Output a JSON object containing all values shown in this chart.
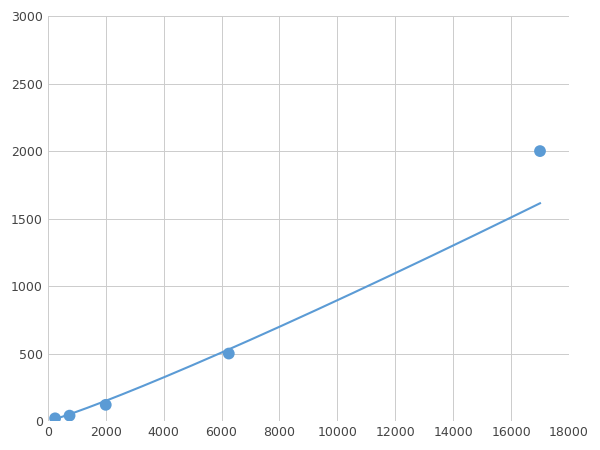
{
  "x": [
    250,
    750,
    2000,
    6250,
    17000
  ],
  "y": [
    20,
    40,
    120,
    500,
    2000
  ],
  "line_color": "#5b9bd5",
  "marker_color": "#5b9bd5",
  "marker_size": 6,
  "xlim": [
    0,
    18000
  ],
  "ylim": [
    0,
    3000
  ],
  "xticks": [
    0,
    2000,
    4000,
    6000,
    8000,
    10000,
    12000,
    14000,
    16000,
    18000
  ],
  "yticks": [
    0,
    500,
    1000,
    1500,
    2000,
    2500,
    3000
  ],
  "grid_color": "#cccccc",
  "bg_color": "#ffffff",
  "fig_bg_color": "#ffffff",
  "linewidth": 1.5
}
